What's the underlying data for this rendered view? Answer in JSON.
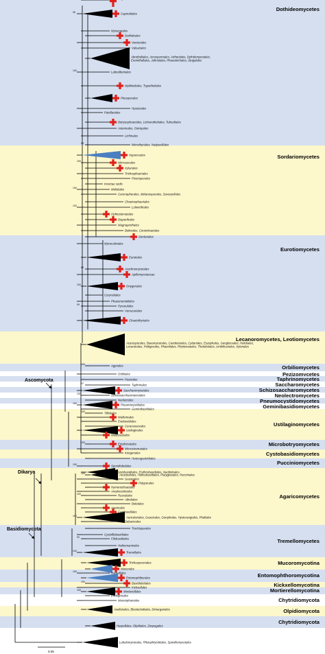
{
  "colors": {
    "blue": "#d5dff0",
    "yellow": "#fdf7cc",
    "white": "#ffffff",
    "clade_fill": "#000000",
    "highlight_blue": "#4a7fc1",
    "cross": "#e0201b"
  },
  "bands": [
    {
      "label": "Dothideomycetes",
      "color": "blue"
    },
    {
      "label": "Sordariomycetes",
      "color": "yellow"
    },
    {
      "label": "Eurotiomycetes",
      "color": "blue"
    },
    {
      "label": "Lecanoromycetes, Leotiomycetes",
      "color": "yellow"
    },
    {
      "label": "Orbiliomycetes",
      "color": "blue"
    },
    {
      "label": "Pezizomycetes",
      "color": "white"
    },
    {
      "label": "Taphrinomycetes",
      "color": "blue"
    },
    {
      "label": "Saccharomycetes",
      "color": "white"
    },
    {
      "label": "Schizosaccharomycetes",
      "color": "blue"
    },
    {
      "label": "Neolectromycetes",
      "color": "white"
    },
    {
      "label": "Pneumocystidomycetes",
      "color": "blue"
    },
    {
      "label": "Geminibasidiomycetes",
      "color": "white"
    },
    {
      "label": "Ustilaginomycetes",
      "color": "yellow"
    },
    {
      "label": "Microbotryomycetes",
      "color": "blue"
    },
    {
      "label": "Cystobasidiomycetes",
      "color": "yellow"
    },
    {
      "label": "Pucciniomycetes",
      "color": "blue"
    },
    {
      "label": "Agaricomycetes",
      "color": "yellow"
    },
    {
      "label": "Tremellomycetes",
      "color": "blue"
    },
    {
      "label": "Mucoromycotina",
      "color": "yellow"
    },
    {
      "label": "Entomophthoromycotina",
      "color": "blue"
    },
    {
      "label": "Kickxellomycotina",
      "color": "yellow"
    },
    {
      "label": "Mortierellomycotina",
      "color": "blue"
    },
    {
      "label": "Chytridiomycota",
      "color": "white"
    },
    {
      "label": "Olpidiomycota",
      "color": "yellow"
    },
    {
      "label": "Chytridiomycota",
      "color": "blue"
    }
  ],
  "clades": [
    {
      "label": "Capnodiales",
      "boot": "96",
      "tri": true,
      "cross": true
    },
    {
      "label": "Myriangiales"
    },
    {
      "label": "Dothideales",
      "cross": true
    },
    {
      "label": "Venturiales",
      "cross": true
    },
    {
      "label": "Valsariales"
    },
    {
      "label": "Abrothallales, Acrospermales, Arthoniales, Dyfrolomycetales, Eremithallales, Jahnulales, Phaeotrichales, Strigulales",
      "tri": true
    },
    {
      "label": "Laboulbeniales",
      "boot": "100"
    },
    {
      "label": "Mytilinidiales, Trypetheliales",
      "cross": true
    },
    {
      "label": "Pleosporales",
      "tri": true,
      "cross": true
    },
    {
      "label": "Hysteriales"
    },
    {
      "label": "Patellariales"
    },
    {
      "label": "Botryosphaeriales, Lichenotheliales, Tubeufiales",
      "cross": true
    },
    {
      "label": "Asterinales, Ostropales"
    },
    {
      "label": "Lichinales"
    },
    {
      "label": "Microthyriales, Natipusillales",
      "boot": "98"
    },
    {
      "label": "Hypocreales",
      "tri": true,
      "blue": true,
      "cross": true
    },
    {
      "label": "Microascales",
      "cross": true,
      "boot": "100"
    },
    {
      "label": "Xylariales",
      "cross": true
    },
    {
      "label": "Trichosphaeriales"
    },
    {
      "label": "Pisorisporales"
    },
    {
      "label": "Incertae sedis"
    },
    {
      "label": "Meliolales",
      "boot": "100"
    },
    {
      "label": "Coronophorales, Melanosporales, Savoryellales"
    },
    {
      "label": "Chaetosphaeriales"
    },
    {
      "label": "Lulworthiales",
      "boot": "100"
    },
    {
      "label": "Ophiostomatales",
      "cross": true
    },
    {
      "label": "Diaporthales",
      "cross": true
    },
    {
      "label": "Magnaporthales"
    },
    {
      "label": "Boliniales, Coniochaetales"
    },
    {
      "label": "Sordariales",
      "cross": true
    },
    {
      "label": "Mycocaliciales"
    },
    {
      "label": "Eurotiales",
      "tri": true,
      "cross": true
    },
    {
      "label": "Arachnomycetales",
      "cross": true,
      "boot": "88"
    },
    {
      "label": "Ajellomycetaceae",
      "cross": true
    },
    {
      "label": "Onygenales",
      "tri": true,
      "cross": true,
      "boot": "100"
    },
    {
      "label": "Coryneliales"
    },
    {
      "label": "Phaeomoniellales"
    },
    {
      "label": "Pyrenulales",
      "boot": "95"
    },
    {
      "label": "Verrucariales"
    },
    {
      "label": "Chaetothyriales",
      "tri": true,
      "cross": true
    },
    {
      "label": "Acarosporales, Baeomycetales, Candelariales, Cyttariales, Erysiphales, Geoglossales, Helotiales, Lecanorales, Peltigerales, Phacidiales, Rhytismatales, Thelebolales, Umbilicariales, Xylonales",
      "tri": true
    },
    {
      "label": "Agyriales",
      "boot": "100"
    },
    {
      "label": "Orbiliales"
    },
    {
      "label": "Pezizales"
    },
    {
      "label": "Taphrinales",
      "boot": "97"
    },
    {
      "label": "Saccharomycetales",
      "tri": true,
      "cross": true
    },
    {
      "label": "Schizosaccharomycetales",
      "boot": "100"
    },
    {
      "label": "Neolectales"
    },
    {
      "label": "Pneumocystidales",
      "tri": true,
      "cross": true,
      "boot": "100"
    },
    {
      "label": "Geminibasidiales"
    },
    {
      "label": "Tilletiales",
      "boot": "100"
    },
    {
      "label": "Wallemiales",
      "cross": true
    },
    {
      "label": "Exobasidiales"
    },
    {
      "label": "Ceraceosorales"
    },
    {
      "label": "Ustilaginales",
      "tri": true,
      "cross": true
    },
    {
      "label": "Malasseziales",
      "cross": true
    },
    {
      "label": "Entylomatales",
      "cross": true,
      "boot": "100"
    },
    {
      "label": "Microstromatales",
      "cross": true
    },
    {
      "label": "Kriegeriales"
    },
    {
      "label": "Heterogastridiales"
    },
    {
      "label": "Sporidiobolales",
      "cross": true,
      "boot": "100"
    },
    {
      "label": "Cystobasidiales, Erythrobasidiales, Naohideales",
      "tri": true
    },
    {
      "label": "Atractiellales, Helicobasidiales, Platygloeales, Pucciniales",
      "tri": true,
      "boot": "100"
    },
    {
      "label": "Geastrales"
    },
    {
      "label": "Polyporales",
      "cross": true
    },
    {
      "label": "Hymenochaetales",
      "cross": true
    },
    {
      "label": "Amylocorticiales"
    },
    {
      "label": "Russulales",
      "boot": "100"
    },
    {
      "label": "Atheliales"
    },
    {
      "label": "Boletales"
    },
    {
      "label": "Agaricales",
      "cross": true
    },
    {
      "label": "Cantharellales",
      "cross": true
    },
    {
      "label": "Auriculariales, Geastrales, Gomphales, Hysterangiales, Phallales",
      "tri": true,
      "boot": "100"
    },
    {
      "label": "Sebacinales"
    },
    {
      "label": "Trechisporales"
    },
    {
      "label": "Cystofilobasidiales"
    },
    {
      "label": "Filobasidiales",
      "boot": "93"
    },
    {
      "label": "Holtermanniales"
    },
    {
      "label": "Tremellales",
      "tri": true,
      "cross": true,
      "boot": "100"
    },
    {
      "label": "Trichosporonales",
      "tri": true,
      "cross": true
    },
    {
      "label": "Mucorales",
      "tri": true,
      "blue": true,
      "cross": true
    },
    {
      "label": "Harpellales",
      "boot": "100"
    },
    {
      "label": "Entomophthorales",
      "tri": true,
      "blue": true,
      "cross": true
    },
    {
      "label": "Basidiobolales",
      "cross": true,
      "boot": "100"
    },
    {
      "label": "Kickxellales"
    },
    {
      "label": "Mortierellales",
      "tri": true,
      "cross": true,
      "boot": "100"
    },
    {
      "label": "Endogonales"
    },
    {
      "label": "Mucoriphaniales"
    },
    {
      "label": "Asellariales, Blastocladiales, Dimargariales",
      "tri": true
    },
    {
      "label": "Harpellales, Olpidiales, Zoopagales",
      "tri": true
    },
    {
      "label": "Lobulomycetales, Rhizophlyctidales, Spizellomycetales",
      "tri": true
    },
    {
      "label": "Chytridiales",
      "cross": true,
      "boot": "85"
    }
  ],
  "annotations": {
    "ascomycota": "Ascomycota",
    "dikarya": "Dikarya",
    "basidiomycota": "Basidiomycota"
  },
  "scale_bar": {
    "label": "0.05"
  }
}
